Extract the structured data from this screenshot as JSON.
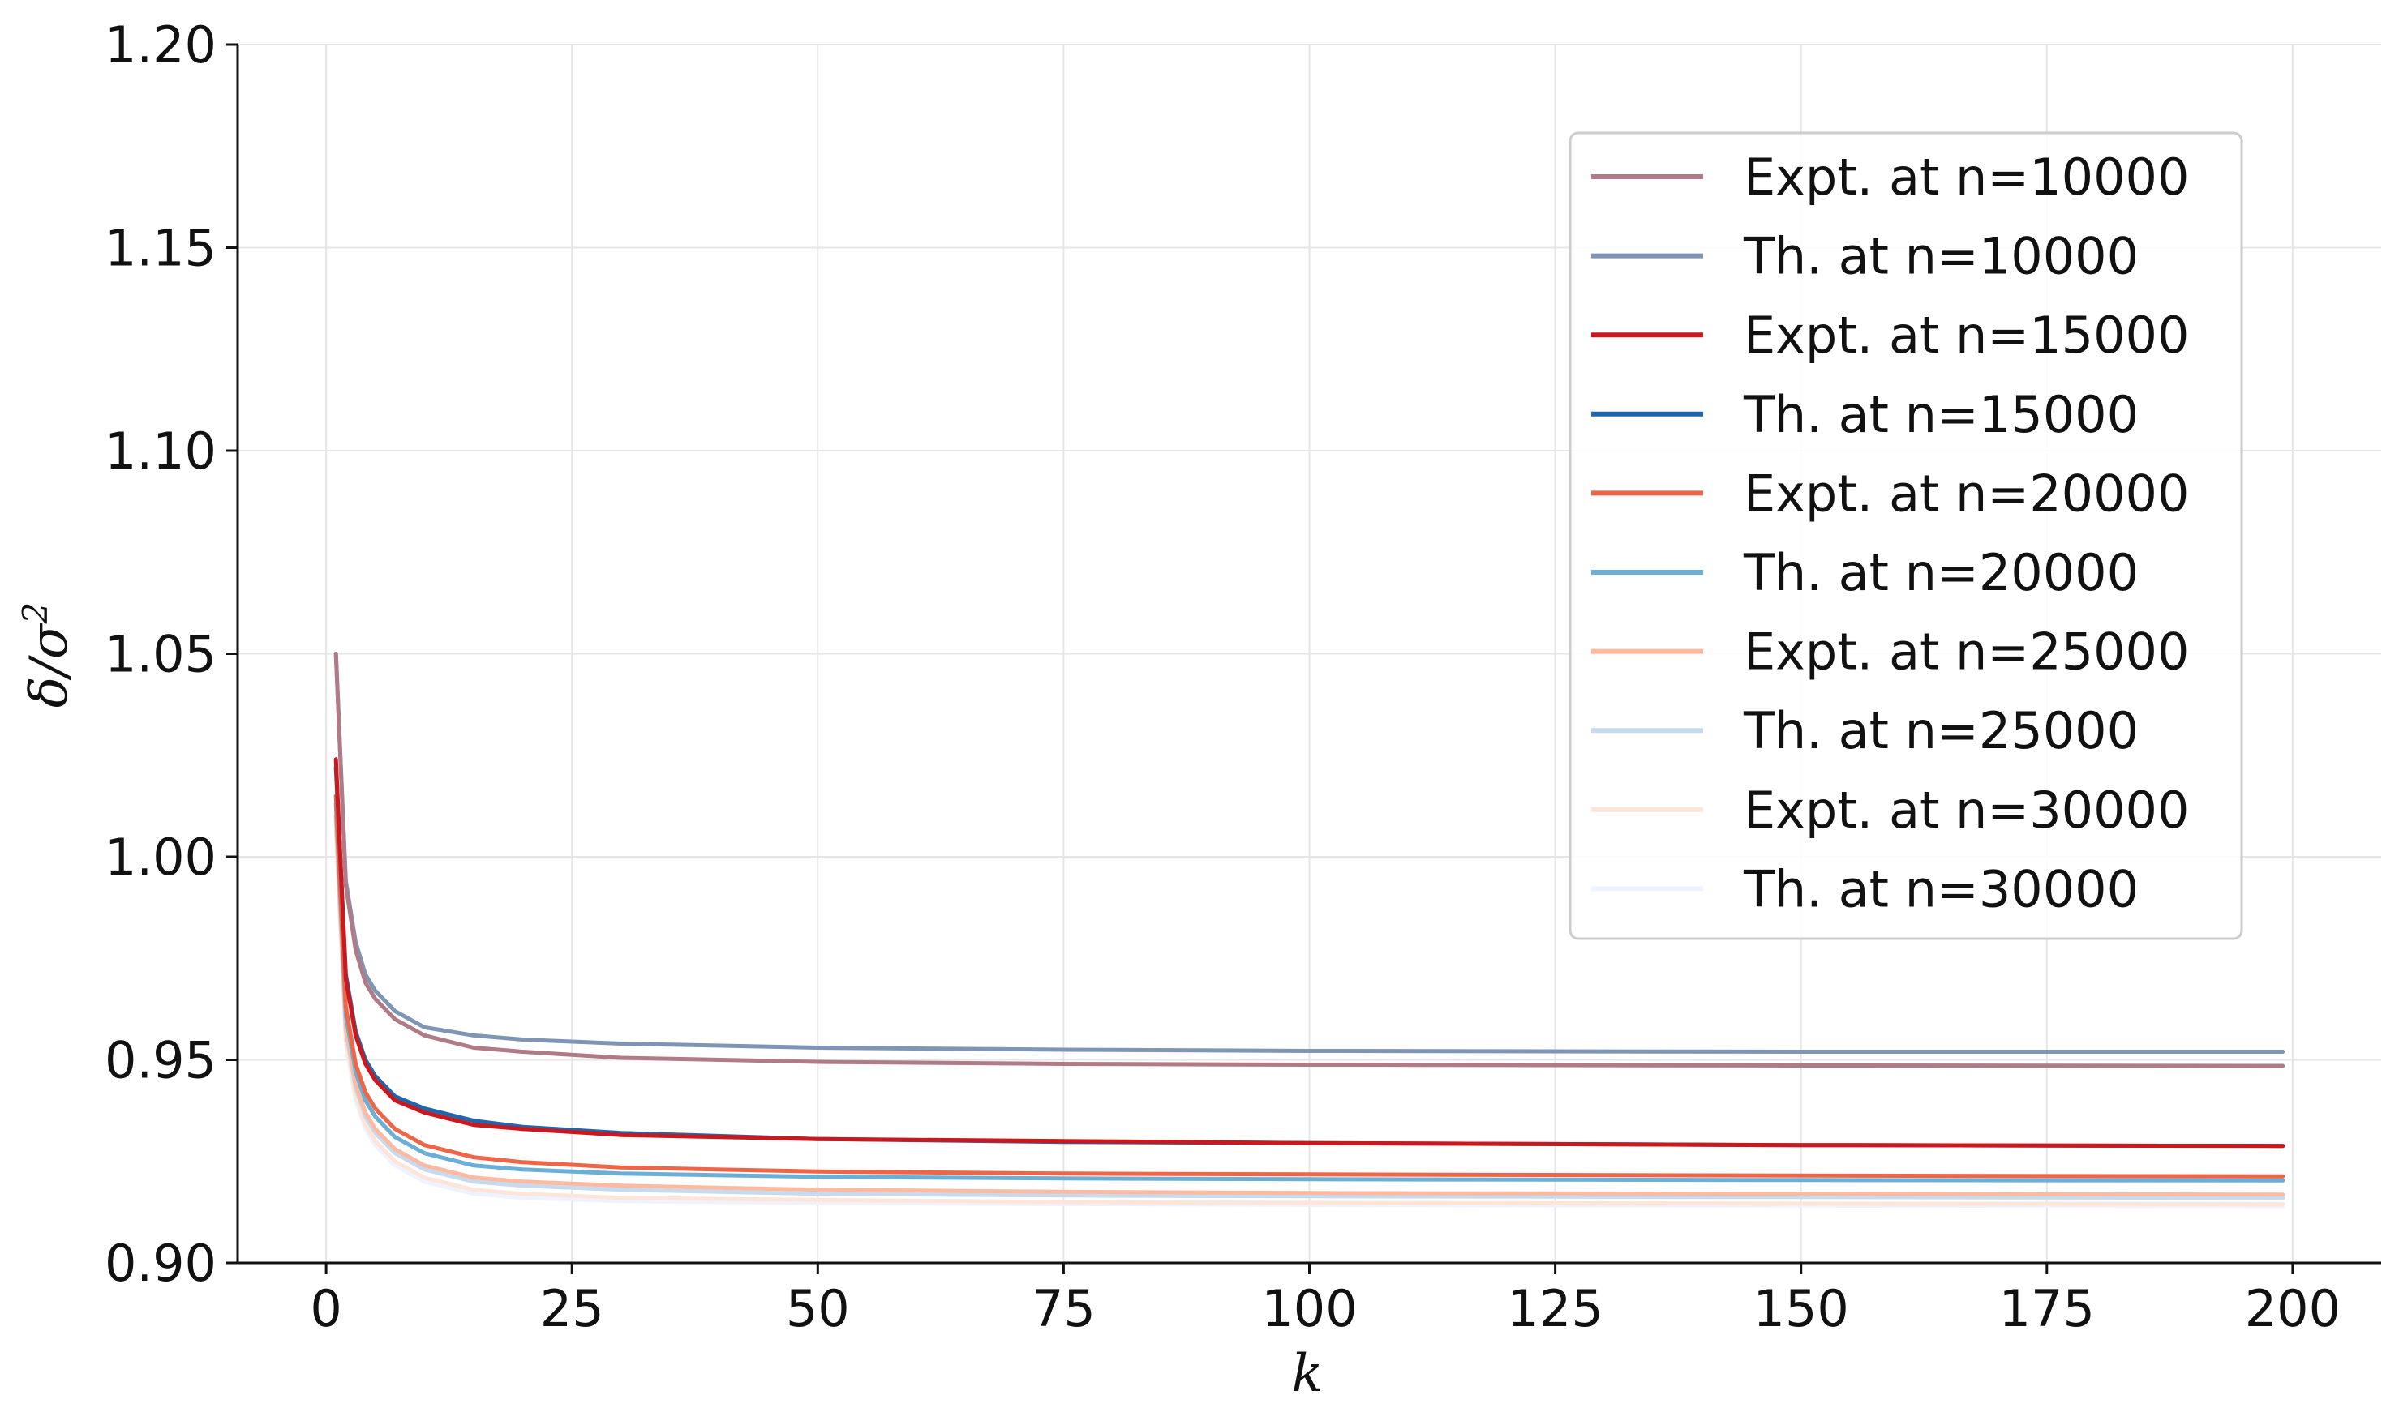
{
  "chart_data": {
    "type": "line",
    "title": "",
    "xlabel": "k",
    "ylabel_main": "δ/σ",
    "ylabel_sup": "2",
    "xlim": [
      -9,
      209
    ],
    "ylim": [
      0.9,
      1.2
    ],
    "grid": true,
    "legend_position": "upper right",
    "x_ticks": [
      0,
      25,
      50,
      75,
      100,
      125,
      150,
      175,
      200
    ],
    "x_tick_labels": [
      "0",
      "25",
      "50",
      "75",
      "100",
      "125",
      "150",
      "175",
      "200"
    ],
    "y_ticks": [
      0.9,
      0.95,
      1.0,
      1.05,
      1.1,
      1.15,
      1.2
    ],
    "y_tick_labels": [
      "0.90",
      "0.95",
      "1.00",
      "1.05",
      "1.10",
      "1.15",
      "1.20"
    ],
    "x": [
      1,
      2,
      3,
      4,
      5,
      7,
      10,
      15,
      20,
      30,
      50,
      75,
      100,
      150,
      199
    ],
    "series": [
      {
        "name": "Expt. at n=10000",
        "color": "#b07a86",
        "values": [
          1.05,
          0.993,
          0.977,
          0.969,
          0.965,
          0.96,
          0.956,
          0.953,
          0.952,
          0.9505,
          0.9495,
          0.949,
          0.9488,
          0.9486,
          0.9485
        ]
      },
      {
        "name": "Th. at n=10000",
        "color": "#7e95b5",
        "values": [
          1.05,
          0.994,
          0.979,
          0.971,
          0.967,
          0.962,
          0.958,
          0.956,
          0.955,
          0.954,
          0.953,
          0.9525,
          0.9522,
          0.952,
          0.952
        ]
      },
      {
        "name": "Expt. at n=15000",
        "color": "#cb181d",
        "values": [
          1.024,
          0.97,
          0.956,
          0.949,
          0.945,
          0.94,
          0.937,
          0.934,
          0.933,
          0.9315,
          0.9305,
          0.93,
          0.9295,
          0.929,
          0.9288
        ]
      },
      {
        "name": "Th. at n=15000",
        "color": "#2166ac",
        "values": [
          1.022,
          0.971,
          0.957,
          0.95,
          0.946,
          0.941,
          0.938,
          0.935,
          0.9335,
          0.932,
          0.9305,
          0.9298,
          0.9295,
          0.929,
          0.9288
        ]
      },
      {
        "name": "Expt. at n=20000",
        "color": "#ef6548",
        "values": [
          1.015,
          0.963,
          0.949,
          0.942,
          0.938,
          0.933,
          0.929,
          0.926,
          0.9248,
          0.9235,
          0.9225,
          0.922,
          0.9218,
          0.9215,
          0.9213
        ]
      },
      {
        "name": "Th. at n=20000",
        "color": "#6baed6",
        "values": [
          1.013,
          0.961,
          0.947,
          0.94,
          0.936,
          0.931,
          0.927,
          0.924,
          0.923,
          0.922,
          0.9212,
          0.9208,
          0.9206,
          0.9204,
          0.9203
        ]
      },
      {
        "name": "Expt. at n=25000",
        "color": "#fcbba1",
        "values": [
          1.01,
          0.958,
          0.944,
          0.937,
          0.933,
          0.928,
          0.924,
          0.921,
          0.92,
          0.919,
          0.918,
          0.9175,
          0.9172,
          0.917,
          0.9168
        ]
      },
      {
        "name": "Th. at n=25000",
        "color": "#c6dbef",
        "values": [
          1.009,
          0.957,
          0.943,
          0.936,
          0.932,
          0.927,
          0.923,
          0.92,
          0.919,
          0.918,
          0.917,
          0.9166,
          0.9164,
          0.9162,
          0.916
        ]
      },
      {
        "name": "Expt. at n=30000",
        "color": "#fee5d9",
        "values": [
          1.007,
          0.955,
          0.941,
          0.934,
          0.93,
          0.925,
          0.921,
          0.918,
          0.917,
          0.916,
          0.9155,
          0.915,
          0.9148,
          0.9146,
          0.9145
        ]
      },
      {
        "name": "Th. at n=30000",
        "color": "#eff3ff",
        "values": [
          1.006,
          0.954,
          0.94,
          0.933,
          0.929,
          0.924,
          0.92,
          0.917,
          0.916,
          0.9152,
          0.9148,
          0.9145,
          0.9143,
          0.9141,
          0.914
        ]
      }
    ]
  }
}
